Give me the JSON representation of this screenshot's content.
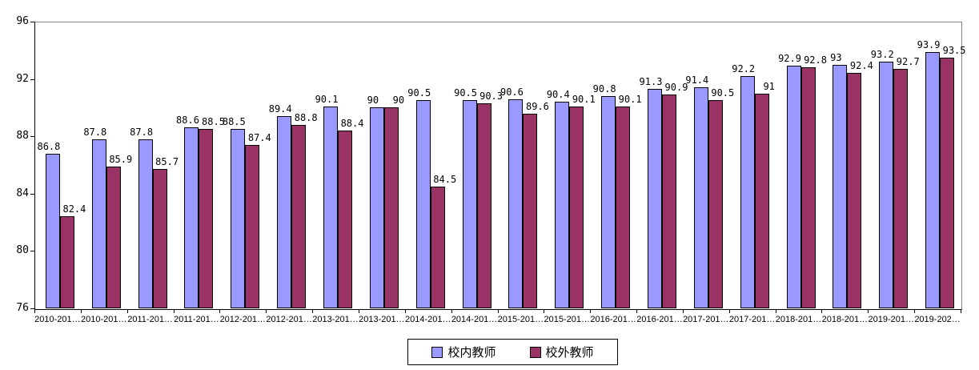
{
  "chart_data": {
    "type": "bar",
    "title": "",
    "xlabel": "",
    "ylabel": "",
    "categories": [
      "2010-201…",
      "2010-201…",
      "2011-201…",
      "2011-201…",
      "2012-201…",
      "2012-201…",
      "2013-201…",
      "2013-201…",
      "2014-201…",
      "2014-201…",
      "2015-201…",
      "2015-201…",
      "2016-201…",
      "2016-201…",
      "2017-201…",
      "2017-201…",
      "2018-201…",
      "2018-201…",
      "2019-201…",
      "2019-202…"
    ],
    "series": [
      {
        "name": "校内教师",
        "color": "#9999FF",
        "values": [
          86.8,
          87.8,
          87.8,
          88.6,
          88.5,
          89.4,
          90.1,
          90,
          90.5,
          90.5,
          90.6,
          90.4,
          90.8,
          91.3,
          91.4,
          92.2,
          92.9,
          93,
          93.2,
          93.9
        ],
        "labels": [
          "86.8",
          "87.8",
          "87.8",
          "88.6",
          "88.5",
          "89.4",
          "90.1",
          "90",
          "90.5",
          "90.5",
          "90.6",
          "90.4",
          "90.8",
          "91.3",
          "91.4",
          "92.2",
          "92.9",
          "93",
          "93.2",
          "93.9"
        ]
      },
      {
        "name": "校外教师",
        "color": "#993366",
        "values": [
          82.4,
          85.9,
          85.7,
          88.5,
          87.4,
          88.8,
          88.4,
          90,
          84.5,
          90.3,
          89.6,
          90.1,
          90.1,
          90.9,
          90.5,
          91,
          92.8,
          92.4,
          92.7,
          93.5
        ],
        "labels": [
          "82.4",
          "85.9",
          "85.7",
          "88.5",
          "87.4",
          "88.8",
          "88.4",
          "90",
          "84.5",
          "90.3",
          "89.6",
          "90.1",
          "90.1",
          "90.9",
          "90.5",
          "91",
          "92.8",
          "92.4",
          "92.7",
          "93.5"
        ]
      }
    ],
    "ylim": [
      76,
      96
    ],
    "yticks": [
      76,
      80,
      84,
      88,
      92,
      96
    ],
    "grid": false,
    "legend_position": "bottom",
    "axis_colors": {
      "value_axis_line": "#000000",
      "plot_border": "#848484",
      "text": "#000000"
    }
  }
}
